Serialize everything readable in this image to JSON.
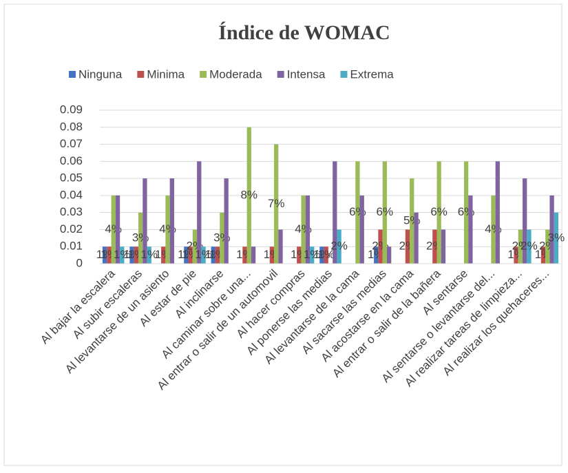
{
  "chart_data": {
    "type": "bar",
    "title": "Índice de WOMAC",
    "categories": [
      "Al bajar la escalera",
      "Al subir escaleras",
      "Al levantarse de un asiento",
      "Al estar de pie",
      "Al inclinarse",
      "Al caminar sobre una...",
      "Al entrar o salir de un automovil",
      "Al hacer compras",
      "Al ponerse las medias",
      "Al levantarse de la cama",
      "Al sacarse las medias",
      "Al acostarse en la cama",
      "Al entrar o salir de la bañera",
      "Al sentarse",
      "Al sentarse o levantarse del...",
      "Al realizar tareas de limpieza...",
      "Al realizar los quehaceres..."
    ],
    "series": [
      {
        "name": "Ninguna",
        "color": "#4472c4",
        "values": [
          0.01,
          0.01,
          0,
          0.01,
          0.01,
          0,
          0,
          0,
          0.01,
          0,
          0.01,
          0,
          0,
          0,
          0,
          0,
          0
        ],
        "value_labels": [
          "1%",
          "1%",
          null,
          "1%",
          "1%",
          null,
          null,
          null,
          "1%",
          null,
          "1%",
          null,
          null,
          null,
          null,
          null,
          null
        ]
      },
      {
        "name": "Minima",
        "color": "#c0504d",
        "values": [
          0.01,
          0.01,
          0.01,
          0.01,
          0.01,
          0.01,
          0.01,
          0.01,
          0.01,
          0,
          0.02,
          0.02,
          0.02,
          0,
          0,
          0.01,
          0.01
        ],
        "value_labels": [
          "1%",
          "1%",
          "1%",
          "1%",
          "1%",
          "1%",
          "1%",
          "1%",
          "1%",
          null,
          "2%",
          "2%",
          "2%",
          null,
          null,
          "1%",
          "1%"
        ]
      },
      {
        "name": "Moderada",
        "color": "#9bbb59",
        "values": [
          0.04,
          0.03,
          0.04,
          0.02,
          0.03,
          0.08,
          0.07,
          0.04,
          0,
          0.06,
          0.06,
          0.05,
          0.06,
          0.06,
          0.04,
          0.02,
          0.02
        ],
        "value_labels": [
          "4%",
          "3%",
          "4%",
          "2%",
          "3%",
          "8%",
          "7%",
          "4%",
          null,
          "6%",
          "6%",
          "5%",
          "6%",
          "6%",
          "4%",
          "2%",
          "2%"
        ]
      },
      {
        "name": "Intensa",
        "color": "#8064a2",
        "values": [
          0.04,
          0.05,
          0.05,
          0.06,
          0.05,
          0.01,
          0.02,
          0.04,
          0.06,
          0.04,
          0.01,
          0.03,
          0.02,
          0.04,
          0.06,
          0.05,
          0.04
        ]
      },
      {
        "name": "Extrema",
        "color": "#4bacc6",
        "values": [
          0.01,
          0.01,
          0,
          0.01,
          0,
          0,
          0,
          0.01,
          0.02,
          0,
          0,
          0,
          0,
          0,
          0,
          0.02,
          0.03
        ],
        "value_labels": [
          "1%",
          "1%",
          null,
          "1%",
          null,
          null,
          null,
          "1%",
          "2%",
          null,
          null,
          null,
          null,
          null,
          null,
          "2%",
          "3%"
        ]
      }
    ],
    "ylim": [
      0,
      0.09
    ],
    "yticks": [
      0,
      0.01,
      0.02,
      0.03,
      0.04,
      0.05,
      0.06,
      0.07,
      0.08,
      0.09
    ],
    "grid": true,
    "legend": "top"
  }
}
